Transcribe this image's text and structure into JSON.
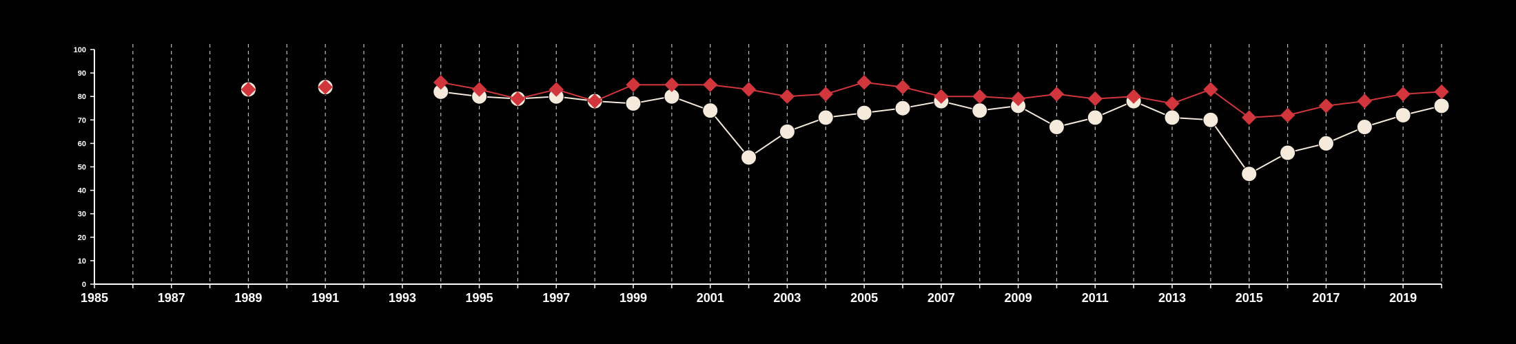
{
  "chart_data": {
    "type": "line",
    "title": "",
    "xlabel": "",
    "ylabel": "",
    "xlim": [
      1985,
      2020
    ],
    "ylim": [
      0,
      100
    ],
    "grid": "vertical dashed lines at each year",
    "legend": "none",
    "background_color": "#000000",
    "axis_color": "#ffffff",
    "grid_color": "#bfbfbf",
    "x_ticks": [
      "1985",
      "1987",
      "1989",
      "1991",
      "1993",
      "1995",
      "1997",
      "1999",
      "2001",
      "2003",
      "2005",
      "2007",
      "2009",
      "2011",
      "2013",
      "2015",
      "2017",
      "2019"
    ],
    "x_tick_values": [
      1985,
      1987,
      1989,
      1991,
      1993,
      1995,
      1997,
      1999,
      2001,
      2003,
      2005,
      2007,
      2009,
      2011,
      2013,
      2015,
      2017,
      2019
    ],
    "y_ticks": [
      "0",
      "10",
      "20",
      "30",
      "40",
      "50",
      "60",
      "70",
      "80",
      "90",
      "100"
    ],
    "y_tick_values": [
      0,
      10,
      20,
      30,
      40,
      50,
      60,
      70,
      80,
      90,
      100
    ],
    "series": [
      {
        "color": "#f5eadb",
        "marker": "circle",
        "connect": true,
        "points": [
          {
            "x": 1989,
            "y": 83
          },
          {
            "x": 1991,
            "y": 84
          },
          {
            "x": 1994,
            "y": 82
          },
          {
            "x": 1995,
            "y": 80
          },
          {
            "x": 1996,
            "y": 79
          },
          {
            "x": 1997,
            "y": 80
          },
          {
            "x": 1998,
            "y": 78
          },
          {
            "x": 1999,
            "y": 77
          },
          {
            "x": 2000,
            "y": 80
          },
          {
            "x": 2001,
            "y": 74
          },
          {
            "x": 2002,
            "y": 54
          },
          {
            "x": 2003,
            "y": 65
          },
          {
            "x": 2004,
            "y": 71
          },
          {
            "x": 2005,
            "y": 73
          },
          {
            "x": 2006,
            "y": 75
          },
          {
            "x": 2007,
            "y": 78
          },
          {
            "x": 2008,
            "y": 74
          },
          {
            "x": 2009,
            "y": 76
          },
          {
            "x": 2010,
            "y": 67
          },
          {
            "x": 2011,
            "y": 71
          },
          {
            "x": 2012,
            "y": 78
          },
          {
            "x": 2013,
            "y": 71
          },
          {
            "x": 2014,
            "y": 70
          },
          {
            "x": 2015,
            "y": 47
          },
          {
            "x": 2016,
            "y": 56
          },
          {
            "x": 2017,
            "y": 60
          },
          {
            "x": 2018,
            "y": 67
          },
          {
            "x": 2019,
            "y": 72
          },
          {
            "x": 2020,
            "y": 76
          }
        ]
      },
      {
        "color": "#d0363c",
        "marker": "diamond",
        "connect": true,
        "points": [
          {
            "x": 1989,
            "y": 83
          },
          {
            "x": 1991,
            "y": 84
          },
          {
            "x": 1994,
            "y": 86
          },
          {
            "x": 1995,
            "y": 83
          },
          {
            "x": 1996,
            "y": 79
          },
          {
            "x": 1997,
            "y": 83
          },
          {
            "x": 1998,
            "y": 78
          },
          {
            "x": 1999,
            "y": 85
          },
          {
            "x": 2000,
            "y": 85
          },
          {
            "x": 2001,
            "y": 85
          },
          {
            "x": 2002,
            "y": 83
          },
          {
            "x": 2003,
            "y": 80
          },
          {
            "x": 2004,
            "y": 81
          },
          {
            "x": 2005,
            "y": 86
          },
          {
            "x": 2006,
            "y": 84
          },
          {
            "x": 2007,
            "y": 80
          },
          {
            "x": 2008,
            "y": 80
          },
          {
            "x": 2009,
            "y": 79
          },
          {
            "x": 2010,
            "y": 81
          },
          {
            "x": 2011,
            "y": 79
          },
          {
            "x": 2012,
            "y": 80
          },
          {
            "x": 2013,
            "y": 77
          },
          {
            "x": 2014,
            "y": 83
          },
          {
            "x": 2015,
            "y": 71
          },
          {
            "x": 2016,
            "y": 72
          },
          {
            "x": 2017,
            "y": 76
          },
          {
            "x": 2018,
            "y": 78
          },
          {
            "x": 2019,
            "y": 81
          },
          {
            "x": 2020,
            "y": 82
          }
        ]
      }
    ]
  }
}
